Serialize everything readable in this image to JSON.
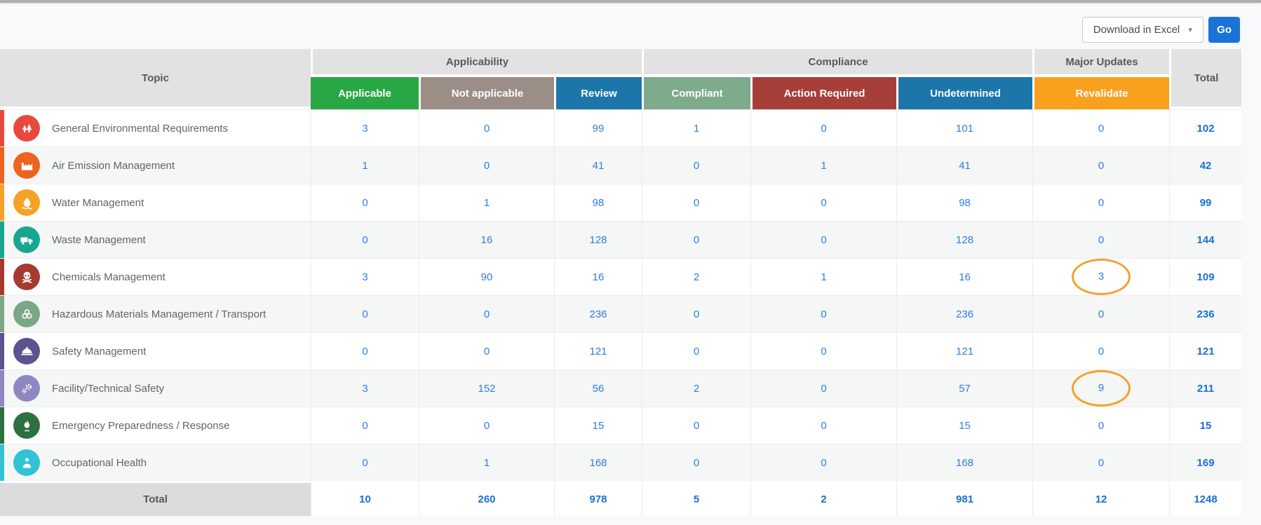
{
  "toolbar": {
    "download_label": "Download in Excel",
    "go_label": "Go"
  },
  "colors": {
    "link_blue": "#2d7de2",
    "total_blue": "#1a6fd9",
    "go_button": "#1a73d9",
    "header_gray": "#e2e2e2",
    "annotation_orange": "#f0a42d"
  },
  "table": {
    "headers": {
      "topic": "Topic",
      "groups": [
        {
          "label": "Applicability"
        },
        {
          "label": "Compliance"
        },
        {
          "label": "Major Updates"
        }
      ],
      "subcolumns": [
        {
          "label": "Applicable",
          "color": "#28a745"
        },
        {
          "label": "Not applicable",
          "color": "#9b8e86"
        },
        {
          "label": "Review",
          "color": "#1d76a9"
        },
        {
          "label": "Compliant",
          "color": "#7dab8c"
        },
        {
          "label": "Action Required",
          "color": "#a63f39"
        },
        {
          "label": "Undetermined",
          "color": "#1d76a9"
        },
        {
          "label": "Revalidate",
          "color": "#f9a11d"
        }
      ],
      "total": "Total"
    },
    "rows": [
      {
        "topic": "General Environmental Requirements",
        "icon": "trees-icon",
        "color": "#e8493f",
        "values": [
          3,
          0,
          99,
          1,
          0,
          101,
          0
        ],
        "total": 102,
        "circled": false
      },
      {
        "topic": "Air Emission Management",
        "icon": "factory-icon",
        "color": "#ed6420",
        "values": [
          1,
          0,
          41,
          0,
          1,
          41,
          0
        ],
        "total": 42,
        "circled": false
      },
      {
        "topic": "Water Management",
        "icon": "water-drop-icon",
        "color": "#f6a226",
        "values": [
          0,
          1,
          98,
          0,
          0,
          98,
          0
        ],
        "total": 99,
        "circled": false
      },
      {
        "topic": "Waste Management",
        "icon": "garbage-truck-icon",
        "color": "#18a692",
        "values": [
          0,
          16,
          128,
          0,
          0,
          128,
          0
        ],
        "total": 144,
        "circled": false
      },
      {
        "topic": "Chemicals Management",
        "icon": "skull-crossbones-icon",
        "color": "#a63a2e",
        "values": [
          3,
          90,
          16,
          2,
          1,
          16,
          3
        ],
        "total": 109,
        "circled": true
      },
      {
        "topic": "Hazardous Materials Management / Transport",
        "icon": "biohazard-icon",
        "color": "#7aa886",
        "values": [
          0,
          0,
          236,
          0,
          0,
          236,
          0
        ],
        "total": 236,
        "circled": false
      },
      {
        "topic": "Safety Management",
        "icon": "hard-hat-icon",
        "color": "#5d538f",
        "values": [
          0,
          0,
          121,
          0,
          0,
          121,
          0
        ],
        "total": 121,
        "circled": false
      },
      {
        "topic": "Facility/Technical Safety",
        "icon": "gears-icon",
        "color": "#8e88c2",
        "values": [
          3,
          152,
          56,
          2,
          0,
          57,
          9
        ],
        "total": 211,
        "circled": true
      },
      {
        "topic": "Emergency Preparedness / Response",
        "icon": "flame-icon",
        "color": "#2d7140",
        "values": [
          0,
          0,
          15,
          0,
          0,
          15,
          0
        ],
        "total": 15,
        "circled": false
      },
      {
        "topic": "Occupational Health",
        "icon": "person-health-icon",
        "color": "#30c3d4",
        "values": [
          0,
          1,
          168,
          0,
          0,
          168,
          0
        ],
        "total": 169,
        "circled": false
      }
    ],
    "total_row": {
      "label": "Total",
      "values": [
        10,
        260,
        978,
        5,
        2,
        981,
        12
      ],
      "total": 1248
    }
  }
}
